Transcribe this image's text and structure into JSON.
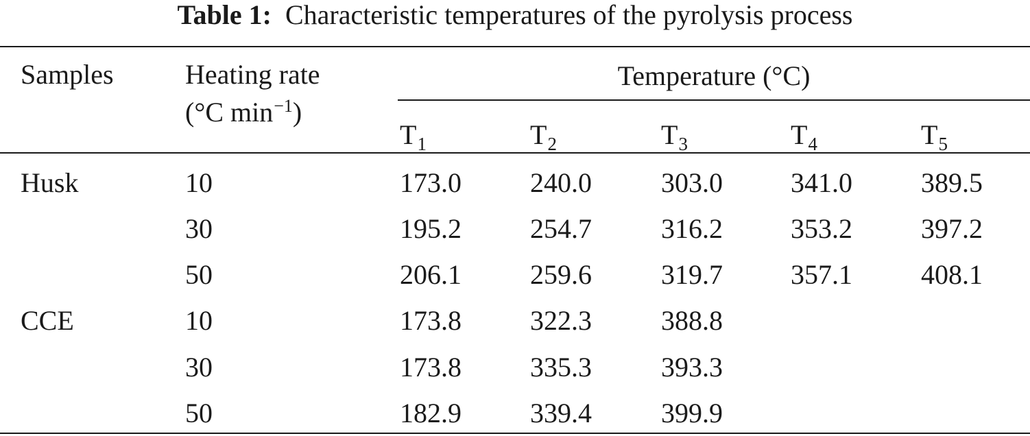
{
  "caption": {
    "label": "Table 1:",
    "text": "Characteristic temperatures of the pyrolysis process"
  },
  "header": {
    "samples": "Samples",
    "heating_rate_line1": "Heating rate",
    "heating_rate_unit_base": "(°C min",
    "heating_rate_unit_exp": "−1",
    "heating_rate_unit_close": ")",
    "temperature": "Temperature (°C)",
    "temp_columns": [
      {
        "base": "T",
        "sub": "1"
      },
      {
        "base": "T",
        "sub": "2"
      },
      {
        "base": "T",
        "sub": "3"
      },
      {
        "base": "T",
        "sub": "4"
      },
      {
        "base": "T",
        "sub": "5"
      }
    ]
  },
  "rows": [
    {
      "sample": "Husk",
      "rate": "10",
      "temps": [
        "173.0",
        "240.0",
        "303.0",
        "341.0",
        "389.5"
      ]
    },
    {
      "sample": "",
      "rate": "30",
      "temps": [
        "195.2",
        "254.7",
        "316.2",
        "353.2",
        "397.2"
      ]
    },
    {
      "sample": "",
      "rate": "50",
      "temps": [
        "206.1",
        "259.6",
        "319.7",
        "357.1",
        "408.1"
      ]
    },
    {
      "sample": "CCE",
      "rate": "10",
      "temps": [
        "173.8",
        "322.3",
        "388.8",
        "",
        ""
      ]
    },
    {
      "sample": "",
      "rate": "30",
      "temps": [
        "173.8",
        "335.3",
        "393.3",
        "",
        ""
      ]
    },
    {
      "sample": "",
      "rate": "50",
      "temps": [
        "182.9",
        "339.4",
        "399.9",
        "",
        ""
      ]
    }
  ]
}
